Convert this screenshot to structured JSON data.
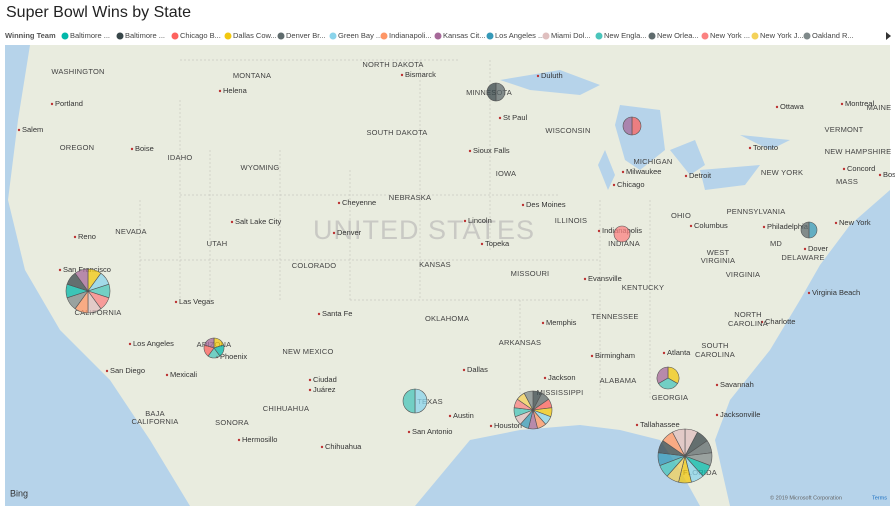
{
  "title": "Super Bowl Wins by State",
  "legend": {
    "title": "Winning Team",
    "items": [
      {
        "name": "Baltimore ...",
        "color": "#01B8AA"
      },
      {
        "name": "Baltimore ...",
        "color": "#374649"
      },
      {
        "name": "Chicago B...",
        "color": "#FD625E"
      },
      {
        "name": "Dallas Cow...",
        "color": "#F2C80F"
      },
      {
        "name": "Denver Br...",
        "color": "#5F6B6D"
      },
      {
        "name": "Green Bay ...",
        "color": "#8AD4EB"
      },
      {
        "name": "Indianapoli...",
        "color": "#FE9666"
      },
      {
        "name": "Kansas Cit...",
        "color": "#A66999"
      },
      {
        "name": "Los Angeles ...",
        "color": "#3599B8"
      },
      {
        "name": "Miami Dol...",
        "color": "#DFBFBF"
      },
      {
        "name": "New Engla...",
        "color": "#4AC5BB"
      },
      {
        "name": "New Orlea...",
        "color": "#5F6B6D"
      },
      {
        "name": "New York ...",
        "color": "#FB8281"
      },
      {
        "name": "New York J...",
        "color": "#F4D25A"
      },
      {
        "name": "Oakland R...",
        "color": "#7F898A"
      }
    ]
  },
  "pies": [
    {
      "values": [
        1,
        1,
        1,
        1,
        1,
        1,
        1,
        1,
        1,
        1
      ],
      "colors": [
        "#F2C80F",
        "#8AD4EB",
        "#4AC5BB",
        "#FB8281",
        "#DFBFBF",
        "#FE9666",
        "#7F898A",
        "#01B8AA",
        "#374649",
        "#A66999"
      ]
    },
    {
      "values": [
        1,
        1,
        1,
        1,
        1
      ],
      "colors": [
        "#F2C80F",
        "#01B8AA",
        "#4AC5BB",
        "#FD625E",
        "#A66999"
      ]
    },
    {
      "values": [
        1,
        1
      ],
      "colors": [
        "#5F6B6D",
        "#374649"
      ]
    },
    {
      "values": [
        1,
        1
      ],
      "colors": [
        "#FD625E",
        "#A66999"
      ]
    },
    {
      "values": [
        1
      ],
      "colors": [
        "#FB8281"
      ]
    },
    {
      "values": [
        1,
        1
      ],
      "colors": [
        "#3599B8",
        "#5F6B6D"
      ]
    },
    {
      "values": [
        1,
        1
      ],
      "colors": [
        "#8AD4EB",
        "#4AC5BB"
      ]
    },
    {
      "values": [
        1,
        1,
        1,
        1,
        1,
        1,
        1,
        1,
        1,
        1,
        1,
        1,
        1
      ],
      "colors": [
        "#374649",
        "#5F6B6D",
        "#FD625E",
        "#F2C80F",
        "#8AD4EB",
        "#FE9666",
        "#A66999",
        "#3599B8",
        "#DFBFBF",
        "#4AC5BB",
        "#FB8281",
        "#F4D25A",
        "#7F898A"
      ]
    },
    {
      "values": [
        1,
        1,
        1
      ],
      "colors": [
        "#F2C80F",
        "#4AC5BB",
        "#A66999"
      ]
    },
    {
      "values": [
        1,
        1,
        1,
        1,
        1,
        1,
        1,
        1,
        1,
        1,
        1,
        1,
        1
      ],
      "colors": [
        "#DFBFBF",
        "#374649",
        "#5F6B6D",
        "#7F898A",
        "#01B8AA",
        "#8AD4EB",
        "#F2C80F",
        "#F4D25A",
        "#4AC5BB",
        "#3599B8",
        "#374649",
        "#FE9666",
        "#DFBFBF"
      ]
    }
  ],
  "map_labels": [
    "WASHINGTON",
    "Portland",
    "Salem",
    "OREGON",
    "Boise",
    "IDAHO",
    "MONTANA",
    "Helena",
    "WYOMING",
    "NORTH DAKOTA",
    "Bismarck",
    "SOUTH DAKOTA",
    "MINNESOTA",
    "Duluth",
    "St Paul",
    "WISCONSIN",
    "MICHIGAN",
    "Milwaukee",
    "Chicago",
    "Detroit",
    "Ottawa",
    "Montreal",
    "Toronto",
    "NEW YORK",
    "VERMONT",
    "NEW HAMPSHIRE",
    "MAINE",
    "Concord",
    "MASS",
    "Boston",
    "Sioux Falls",
    "IOWA",
    "Des Moines",
    "NEBRASKA",
    "Cheyenne",
    "Denver",
    "Salt Lake City",
    "NEVADA",
    "Reno",
    "UTAH",
    "COLORADO",
    "KANSAS",
    "Lincoln",
    "Topeka",
    "MISSOURI",
    "ILLINOIS",
    "Indianapolis",
    "INDIANA",
    "OHIO",
    "Columbus",
    "PENNSYLVANIA",
    "Philadelphia",
    "New York",
    "MD",
    "Dover",
    "DELAWARE",
    "WEST",
    "VIRGINIA",
    "VIRGINIA",
    "Evansville",
    "KENTUCKY",
    "Virginia Beach",
    "San Francisco",
    "Las Vegas",
    "CALIFORNIA",
    "Santa Fe",
    "OKLAHOMA",
    "Memphis",
    "TENNESSEE",
    "Charlotte",
    "NORTH",
    "CAROLINA",
    "Los Angeles",
    "ARIZONA",
    "Phoenix",
    "NEW MEXICO",
    "ARKANSAS",
    "Birmingham",
    "Atlanta",
    "SOUTH",
    "CAROLINA",
    "San Diego",
    "Mexicali",
    "Dallas",
    "Jackson",
    "MISSISSIPPI",
    "ALABAMA",
    "GEORGIA",
    "Savannah",
    "Ciudad",
    "Juárez",
    "TEXAS",
    "Austin",
    "Houston",
    "San Antonio",
    "Tallahassee",
    "Jacksonville",
    "CHIHUAHUA",
    "BAJA",
    "CALIFORNIA",
    "SONORA",
    "Hermosillo",
    "Chihuahua",
    "FLORIDA"
  ],
  "watermark": "UNITED STATES",
  "bing": "Bing",
  "copyright": "© 2019 Microsoft Corporation",
  "terms": "Terms"
}
